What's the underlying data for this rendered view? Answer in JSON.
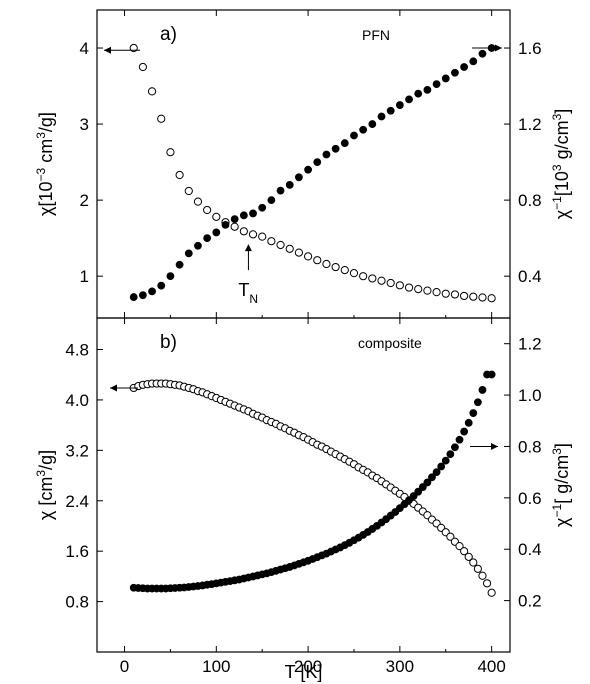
{
  "chart_data": [
    {
      "type": "scatter",
      "panel_label": "a)",
      "name": "PFN",
      "xlabel": "T [K]",
      "xlim": [
        -30,
        420
      ],
      "xticks": [
        0,
        100,
        200,
        300,
        400
      ],
      "ylabel_left": {
        "prefix": "χ[10",
        "sup1": "−3",
        "mid": " cm",
        "sup2": "3",
        "suffix": "/g]"
      },
      "ylabel_right": {
        "prefix": "χ",
        "sup1": "−1",
        "mid": "[10",
        "sup2": "3",
        "mid2": " g/cm",
        "sup3": "3",
        "suffix": "]"
      },
      "ylim_left": [
        0.45,
        4.5
      ],
      "yticks_left": [
        1,
        2,
        3,
        4
      ],
      "ylim_right": [
        0.18,
        1.8
      ],
      "yticks_right": [
        0.4,
        0.8,
        1.2,
        1.6
      ],
      "annotation": {
        "text": "T",
        "sub": "N",
        "x": 135,
        "y": 1.5
      },
      "series": [
        {
          "axis": "left",
          "marker": "open-circle",
          "x": [
            10,
            20,
            30,
            40,
            50,
            60,
            70,
            80,
            90,
            100,
            110,
            120,
            130,
            140,
            150,
            160,
            170,
            180,
            190,
            200,
            210,
            220,
            230,
            240,
            250,
            260,
            270,
            280,
            290,
            300,
            310,
            320,
            330,
            340,
            350,
            360,
            370,
            380,
            390,
            400
          ],
          "y": [
            4.0,
            3.75,
            3.43,
            3.07,
            2.63,
            2.33,
            2.12,
            1.98,
            1.87,
            1.78,
            1.71,
            1.65,
            1.59,
            1.55,
            1.52,
            1.46,
            1.41,
            1.36,
            1.31,
            1.26,
            1.21,
            1.16,
            1.12,
            1.08,
            1.04,
            1.0,
            0.97,
            0.94,
            0.91,
            0.88,
            0.85,
            0.83,
            0.81,
            0.79,
            0.77,
            0.76,
            0.74,
            0.73,
            0.72,
            0.71
          ]
        },
        {
          "axis": "right",
          "marker": "filled-circle",
          "x": [
            10,
            20,
            30,
            40,
            50,
            60,
            70,
            80,
            90,
            100,
            110,
            120,
            130,
            140,
            150,
            160,
            170,
            180,
            190,
            200,
            210,
            220,
            230,
            240,
            250,
            260,
            270,
            280,
            290,
            300,
            310,
            320,
            330,
            340,
            350,
            360,
            370,
            380,
            390,
            400
          ],
          "y": [
            0.29,
            0.3,
            0.32,
            0.35,
            0.4,
            0.46,
            0.52,
            0.56,
            0.6,
            0.63,
            0.67,
            0.7,
            0.72,
            0.73,
            0.76,
            0.8,
            0.85,
            0.88,
            0.92,
            0.96,
            1.0,
            1.04,
            1.07,
            1.1,
            1.14,
            1.17,
            1.2,
            1.24,
            1.27,
            1.3,
            1.33,
            1.36,
            1.38,
            1.41,
            1.44,
            1.47,
            1.5,
            1.53,
            1.57,
            1.6
          ]
        }
      ]
    },
    {
      "type": "scatter",
      "panel_label": "b)",
      "name": "composite",
      "xlabel": "T [K]",
      "xlim": [
        -30,
        420
      ],
      "xticks": [
        0,
        100,
        200,
        300,
        400
      ],
      "ylabel_left": {
        "prefix": "χ [cm",
        "sup1": "3",
        "suffix": "/g]"
      },
      "ylabel_right": {
        "prefix": "χ",
        "sup1": "−1",
        "mid": "[ g/cm",
        "sup2": "3",
        "suffix": "]"
      },
      "ylim_left": [
        0.0,
        5.3
      ],
      "yticks_left": [
        0.8,
        1.6,
        2.4,
        3.2,
        4.0,
        4.8
      ],
      "ylim_right": [
        0.0,
        1.3
      ],
      "yticks_right": [
        0.2,
        0.4,
        0.6,
        0.8,
        1.0,
        1.2
      ],
      "series": [
        {
          "axis": "left",
          "marker": "open-circle",
          "x": [
            10,
            15,
            20,
            25,
            30,
            35,
            40,
            45,
            50,
            55,
            60,
            65,
            70,
            75,
            80,
            85,
            90,
            95,
            100,
            105,
            110,
            115,
            120,
            125,
            130,
            135,
            140,
            145,
            150,
            155,
            160,
            165,
            170,
            175,
            180,
            185,
            190,
            195,
            200,
            205,
            210,
            215,
            220,
            225,
            230,
            235,
            240,
            245,
            250,
            255,
            260,
            265,
            270,
            275,
            280,
            285,
            290,
            295,
            300,
            305,
            310,
            315,
            320,
            325,
            330,
            335,
            340,
            345,
            350,
            355,
            360,
            365,
            370,
            375,
            380,
            385,
            390,
            395,
            400
          ],
          "y": [
            4.19,
            4.22,
            4.24,
            4.25,
            4.26,
            4.26,
            4.26,
            4.26,
            4.25,
            4.24,
            4.23,
            4.21,
            4.19,
            4.17,
            4.14,
            4.12,
            4.09,
            4.06,
            4.03,
            4.0,
            3.97,
            3.94,
            3.91,
            3.88,
            3.85,
            3.82,
            3.78,
            3.75,
            3.72,
            3.68,
            3.65,
            3.62,
            3.58,
            3.55,
            3.51,
            3.48,
            3.44,
            3.41,
            3.37,
            3.33,
            3.29,
            3.26,
            3.22,
            3.18,
            3.14,
            3.1,
            3.06,
            3.02,
            2.98,
            2.93,
            2.89,
            2.85,
            2.8,
            2.76,
            2.71,
            2.66,
            2.61,
            2.56,
            2.51,
            2.46,
            2.4,
            2.35,
            2.29,
            2.23,
            2.17,
            2.1,
            2.04,
            1.97,
            1.9,
            1.83,
            1.75,
            1.68,
            1.6,
            1.51,
            1.42,
            1.32,
            1.21,
            1.09,
            0.94
          ]
        },
        {
          "axis": "right",
          "marker": "filled-circle",
          "x": [
            10,
            15,
            20,
            25,
            30,
            35,
            40,
            45,
            50,
            55,
            60,
            65,
            70,
            75,
            80,
            85,
            90,
            95,
            100,
            105,
            110,
            115,
            120,
            125,
            130,
            135,
            140,
            145,
            150,
            155,
            160,
            165,
            170,
            175,
            180,
            185,
            190,
            195,
            200,
            205,
            210,
            215,
            220,
            225,
            230,
            235,
            240,
            245,
            250,
            255,
            260,
            265,
            270,
            275,
            280,
            285,
            290,
            295,
            300,
            305,
            310,
            315,
            320,
            325,
            330,
            335,
            340,
            345,
            350,
            355,
            360,
            365,
            370,
            375,
            380,
            385,
            390,
            395,
            400
          ],
          "y": [
            0.25,
            0.249,
            0.248,
            0.247,
            0.247,
            0.247,
            0.247,
            0.247,
            0.248,
            0.249,
            0.25,
            0.251,
            0.253,
            0.255,
            0.257,
            0.259,
            0.262,
            0.264,
            0.267,
            0.27,
            0.273,
            0.276,
            0.279,
            0.282,
            0.286,
            0.29,
            0.294,
            0.298,
            0.302,
            0.306,
            0.311,
            0.316,
            0.321,
            0.326,
            0.331,
            0.337,
            0.343,
            0.349,
            0.355,
            0.362,
            0.369,
            0.376,
            0.383,
            0.391,
            0.399,
            0.407,
            0.416,
            0.425,
            0.435,
            0.445,
            0.456,
            0.467,
            0.479,
            0.491,
            0.504,
            0.517,
            0.531,
            0.545,
            0.56,
            0.575,
            0.591,
            0.607,
            0.624,
            0.642,
            0.66,
            0.68,
            0.7,
            0.722,
            0.745,
            0.77,
            0.797,
            0.826,
            0.858,
            0.892,
            0.93,
            0.972,
            1.02,
            1.08,
            1.08
          ]
        }
      ]
    }
  ]
}
